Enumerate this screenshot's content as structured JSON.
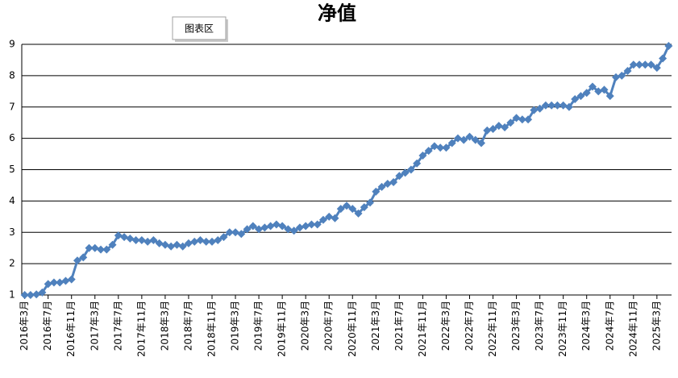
{
  "chart_data": {
    "type": "line",
    "title": "净值",
    "annotation": "图表区",
    "color": "#4f81bd",
    "grid": true,
    "ylim": [
      1,
      9
    ],
    "yticks": [
      1,
      2,
      3,
      4,
      5,
      6,
      7,
      8,
      9
    ],
    "categories": [
      "2016年3月",
      null,
      null,
      null,
      "2016年7月",
      null,
      null,
      null,
      "2016年11月",
      null,
      null,
      null,
      "2017年3月",
      null,
      null,
      null,
      "2017年7月",
      null,
      null,
      null,
      "2017年11月",
      null,
      null,
      null,
      "2018年3月",
      null,
      null,
      null,
      "2018年7月",
      null,
      null,
      null,
      "2018年11月",
      null,
      null,
      null,
      "2019年3月",
      null,
      null,
      null,
      "2019年7月",
      null,
      null,
      null,
      "2019年11月",
      null,
      null,
      null,
      "2020年3月",
      null,
      null,
      null,
      "2020年7月",
      null,
      null,
      null,
      "2020年11月",
      null,
      null,
      null,
      "2021年3月",
      null,
      null,
      null,
      "2021年7月",
      null,
      null,
      null,
      "2021年11月",
      null,
      null,
      null,
      "2022年3月",
      null,
      null,
      null,
      "2022年7月",
      null,
      null,
      null,
      "2022年11月",
      null,
      null,
      null,
      "2023年3月",
      null,
      null,
      null,
      "2023年7月",
      null,
      null,
      null,
      "2023年11月",
      null,
      null,
      null,
      "2024年3月",
      null,
      null,
      null,
      "2024年7月",
      null,
      null,
      null,
      "2024年11月",
      null,
      null,
      null,
      "2025年3月",
      null,
      null
    ],
    "values": [
      1.0,
      1.0,
      1.02,
      1.08,
      1.35,
      1.4,
      1.4,
      1.45,
      1.5,
      2.1,
      2.2,
      2.5,
      2.5,
      2.45,
      2.45,
      2.6,
      2.9,
      2.85,
      2.8,
      2.75,
      2.75,
      2.7,
      2.75,
      2.65,
      2.6,
      2.55,
      2.6,
      2.55,
      2.65,
      2.7,
      2.75,
      2.7,
      2.7,
      2.75,
      2.85,
      3.0,
      3.0,
      2.95,
      3.1,
      3.2,
      3.1,
      3.15,
      3.2,
      3.25,
      3.2,
      3.1,
      3.05,
      3.15,
      3.2,
      3.25,
      3.25,
      3.4,
      3.5,
      3.45,
      3.75,
      3.85,
      3.75,
      3.6,
      3.8,
      3.95,
      4.3,
      4.45,
      4.55,
      4.6,
      4.8,
      4.9,
      5.0,
      5.2,
      5.45,
      5.6,
      5.75,
      5.7,
      5.7,
      5.85,
      6.0,
      5.95,
      6.05,
      5.95,
      5.85,
      6.25,
      6.3,
      6.4,
      6.35,
      6.5,
      6.65,
      6.6,
      6.6,
      6.9,
      6.95,
      7.05,
      7.05,
      7.05,
      7.05,
      7.0,
      7.25,
      7.35,
      7.45,
      7.65,
      7.5,
      7.55,
      7.35,
      7.95,
      8.0,
      8.15,
      8.35,
      8.35,
      8.35,
      8.35,
      8.25,
      8.55,
      8.95
    ]
  }
}
